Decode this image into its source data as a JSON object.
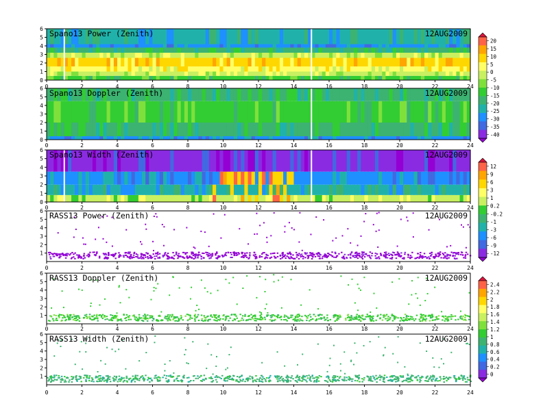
{
  "chart_data": [
    {
      "type": "heatmap",
      "title": "Spano13 Power (Zenith)",
      "date": "12AUG2009",
      "x_ticks": [
        "0",
        "2",
        "4",
        "6",
        "8",
        "10",
        "12",
        "14",
        "16",
        "18",
        "20",
        "22",
        "24"
      ],
      "y_ticks": [
        "0",
        "1",
        "2",
        "3",
        "4",
        "5",
        "6"
      ],
      "xlim": [
        0,
        24
      ],
      "ylim": [
        0,
        6
      ],
      "field": "power",
      "gaps_at_x": [
        1.0,
        15.0
      ],
      "bands": [
        {
          "y": [
            0.0,
            0.5
          ],
          "level": "-10"
        },
        {
          "y": [
            0.5,
            1.0
          ],
          "level": "0"
        },
        {
          "y": [
            1.0,
            1.6
          ],
          "level": "5"
        },
        {
          "y": [
            1.6,
            2.6
          ],
          "level": "10"
        },
        {
          "y": [
            2.6,
            3.2
          ],
          "level": "0"
        },
        {
          "y": [
            3.2,
            3.8
          ],
          "level": "-15"
        },
        {
          "y": [
            3.8,
            4.2
          ],
          "level": "-25"
        },
        {
          "y": [
            4.2,
            6.0
          ],
          "level": "-20"
        }
      ]
    },
    {
      "type": "heatmap",
      "title": "Spano13 Doppler (Zenith)",
      "date": "12AUG2009",
      "x_ticks": [
        "0",
        "2",
        "4",
        "6",
        "8",
        "10",
        "12",
        "14",
        "16",
        "18",
        "20",
        "22",
        "24"
      ],
      "y_ticks": [
        "0",
        "1",
        "2",
        "3",
        "4",
        "5",
        "6"
      ],
      "xlim": [
        0,
        24
      ],
      "ylim": [
        0,
        6
      ],
      "field": "doppler",
      "gaps_at_x": [
        15.0
      ],
      "bands": [
        {
          "y": [
            0.0,
            0.4
          ],
          "level": "-25"
        },
        {
          "y": [
            0.4,
            2.0
          ],
          "level": "-15"
        },
        {
          "y": [
            2.0,
            4.5
          ],
          "level": "-10"
        },
        {
          "y": [
            4.5,
            6.0
          ],
          "level": "-15"
        }
      ]
    },
    {
      "type": "heatmap",
      "title": "Spano13 Width (Zenith)",
      "date": "12AUG2009",
      "x_ticks": [
        "0",
        "2",
        "4",
        "6",
        "8",
        "10",
        "12",
        "14",
        "16",
        "18",
        "20",
        "22",
        "24"
      ],
      "y_ticks": [
        "0",
        "1",
        "2",
        "3",
        "4",
        "5",
        "6"
      ],
      "xlim": [
        0,
        24
      ],
      "ylim": [
        0,
        6
      ],
      "field": "width",
      "gaps_at_x": [
        1.0,
        15.0
      ],
      "bands": [
        {
          "y": [
            0.0,
            0.8
          ],
          "level": "1"
        },
        {
          "y": [
            0.8,
            2.0
          ],
          "level": "-1"
        },
        {
          "y": [
            2.0,
            3.5
          ],
          "level": "-3"
        },
        {
          "y": [
            3.5,
            6.0
          ],
          "level": "-9"
        }
      ],
      "hotspot": {
        "x": [
          9.5,
          14.0
        ],
        "y": [
          0.0,
          3.5
        ],
        "level": "9"
      }
    },
    {
      "type": "scatter",
      "title": "RASS13 Power (Zenith)",
      "date": "12AUG2009",
      "x_ticks": [
        "0",
        "2",
        "4",
        "6",
        "8",
        "10",
        "12",
        "14",
        "16",
        "18",
        "20",
        "22",
        "24"
      ],
      "y_ticks": [
        "1",
        "2",
        "3",
        "4",
        "5",
        "6"
      ],
      "xlim": [
        0,
        24
      ],
      "ylim": [
        0,
        6
      ],
      "field": "rass_power",
      "layer_y": [
        0.4,
        1.2
      ],
      "layer_level": "-12"
    },
    {
      "type": "scatter",
      "title": "RASS13 Doppler (Zenith)",
      "date": "12AUG2009",
      "x_ticks": [
        "0",
        "2",
        "4",
        "6",
        "8",
        "10",
        "12",
        "14",
        "16",
        "18",
        "20",
        "22",
        "24"
      ],
      "y_ticks": [
        "1",
        "2",
        "3",
        "4",
        "5",
        "6"
      ],
      "xlim": [
        0,
        24
      ],
      "ylim": [
        0,
        6
      ],
      "field": "rass_doppler",
      "layer_y": [
        0.4,
        1.2
      ],
      "layer_level": "1.2"
    },
    {
      "type": "scatter",
      "title": "RASS13 Width (Zenith)",
      "date": "12AUG2009",
      "x_ticks": [
        "0",
        "2",
        "4",
        "6",
        "8",
        "10",
        "12",
        "14",
        "16",
        "18",
        "20",
        "22",
        "24"
      ],
      "y_ticks": [
        "1",
        "2",
        "3",
        "4",
        "5",
        "6"
      ],
      "xlim": [
        0,
        24
      ],
      "ylim": [
        0,
        6
      ],
      "field": "rass_width",
      "layer_y": [
        0.4,
        1.2
      ],
      "layer_level": "1"
    }
  ],
  "colorbars": [
    {
      "levels": [
        "20",
        "15",
        "10",
        "5",
        "0",
        "-5",
        "-10",
        "-15",
        "-20",
        "-25",
        "-30",
        "-35",
        "-40"
      ],
      "colors": [
        "#dc143c",
        "#ff6347",
        "#ffa500",
        "#ffd700",
        "#ffff66",
        "#c8f060",
        "#7fe03c",
        "#32cd32",
        "#3cb371",
        "#20b2aa",
        "#1e90ff",
        "#4169e1",
        "#8a2be2",
        "#9400d3"
      ]
    },
    {
      "levels": [
        "12",
        "9",
        "6",
        "3",
        "1",
        "0.2",
        "-0.2",
        "-1",
        "-3",
        "-6",
        "-9",
        "-12"
      ],
      "colors": [
        "#dc143c",
        "#ff6347",
        "#ffa500",
        "#ffd700",
        "#ffff66",
        "#c8f060",
        "#32cd32",
        "#3cb371",
        "#20b2aa",
        "#1e90ff",
        "#4169e1",
        "#8a2be2",
        "#9400d3"
      ]
    },
    {
      "levels": [
        "2.4",
        "2.2",
        "2",
        "1.8",
        "1.6",
        "1.4",
        "1.2",
        "1",
        "0.8",
        "0.6",
        "0.4",
        "0.2",
        "0"
      ],
      "colors": [
        "#dc143c",
        "#ff6347",
        "#ffa500",
        "#ffd700",
        "#ffff66",
        "#c8f060",
        "#7fe03c",
        "#32cd32",
        "#3cb371",
        "#20b2aa",
        "#1e90ff",
        "#4169e1",
        "#8a2be2",
        "#9400d3"
      ]
    }
  ]
}
